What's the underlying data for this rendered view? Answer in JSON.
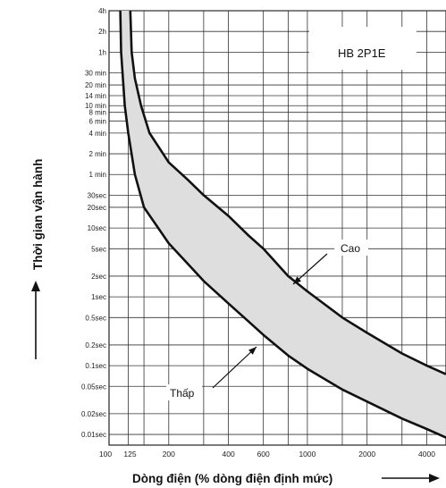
{
  "chart_data": {
    "type": "line",
    "model_label": "HB 2P1E",
    "xlabel": "Dòng điện (% dòng điện định mức)",
    "ylabel": "Thời gian vận hành",
    "x_scale": "log",
    "y_scale": "log",
    "xlim": [
      100,
      5000
    ],
    "ylim_seconds": [
      0.007,
      14400
    ],
    "x_ticks": [
      {
        "label": "100",
        "value": 100
      },
      {
        "label": "125",
        "value": 125
      },
      {
        "label": "200",
        "value": 200
      },
      {
        "label": "400",
        "value": 400
      },
      {
        "label": "600",
        "value": 600
      },
      {
        "label": "1000",
        "value": 1000
      },
      {
        "label": "2000",
        "value": 2000
      },
      {
        "label": "4000",
        "value": 4000
      }
    ],
    "y_ticks": [
      {
        "label": "4h",
        "seconds": 14400
      },
      {
        "label": "2h",
        "seconds": 7200
      },
      {
        "label": "1h",
        "seconds": 3600
      },
      {
        "label": "30 min",
        "seconds": 1800
      },
      {
        "label": "20 min",
        "seconds": 1200
      },
      {
        "label": "14 min",
        "seconds": 840
      },
      {
        "label": "10 min",
        "seconds": 600
      },
      {
        "label": "8 min",
        "seconds": 480
      },
      {
        "label": "6 min",
        "seconds": 360
      },
      {
        "label": "4 min",
        "seconds": 240
      },
      {
        "label": "2 min",
        "seconds": 120
      },
      {
        "label": "1 min",
        "seconds": 60
      },
      {
        "label": "30sec",
        "seconds": 30
      },
      {
        "label": "20sec",
        "seconds": 20
      },
      {
        "label": "10sec",
        "seconds": 10
      },
      {
        "label": "5sec",
        "seconds": 5
      },
      {
        "label": "2sec",
        "seconds": 2
      },
      {
        "label": "1sec",
        "seconds": 1
      },
      {
        "label": "0.5sec",
        "seconds": 0.5
      },
      {
        "label": "0.2sec",
        "seconds": 0.2
      },
      {
        "label": "0.1sec",
        "seconds": 0.1
      },
      {
        "label": "0.05sec",
        "seconds": 0.05
      },
      {
        "label": "0.02sec",
        "seconds": 0.02
      },
      {
        "label": "0.01sec",
        "seconds": 0.01
      }
    ],
    "series": [
      {
        "name": "Cao",
        "points": [
          [
            128,
            14400
          ],
          [
            130,
            3600
          ],
          [
            135,
            1500
          ],
          [
            145,
            600
          ],
          [
            160,
            240
          ],
          [
            200,
            90
          ],
          [
            250,
            50
          ],
          [
            300,
            30
          ],
          [
            400,
            15
          ],
          [
            500,
            8
          ],
          [
            600,
            5
          ],
          [
            800,
            2
          ],
          [
            1000,
            1.2
          ],
          [
            1500,
            0.5
          ],
          [
            2000,
            0.3
          ],
          [
            3000,
            0.15
          ],
          [
            4000,
            0.1
          ],
          [
            5000,
            0.075
          ]
        ]
      },
      {
        "name": "Thấp",
        "points": [
          [
            114,
            14400
          ],
          [
            115,
            3600
          ],
          [
            117,
            1800
          ],
          [
            120,
            600
          ],
          [
            125,
            240
          ],
          [
            135,
            60
          ],
          [
            150,
            20
          ],
          [
            200,
            6
          ],
          [
            250,
            3
          ],
          [
            300,
            1.7
          ],
          [
            400,
            0.8
          ],
          [
            500,
            0.45
          ],
          [
            600,
            0.28
          ],
          [
            800,
            0.14
          ],
          [
            1000,
            0.09
          ],
          [
            1500,
            0.045
          ],
          [
            2000,
            0.03
          ],
          [
            3000,
            0.017
          ],
          [
            4000,
            0.012
          ],
          [
            5000,
            0.009
          ]
        ]
      }
    ],
    "annotations": [
      {
        "text": "Cao",
        "points_to_series": "Cao"
      },
      {
        "text": "Thấp",
        "points_to_series": "Thấp"
      }
    ],
    "band_fill": "#dedede",
    "curve_color": "#111111",
    "grid": true
  }
}
